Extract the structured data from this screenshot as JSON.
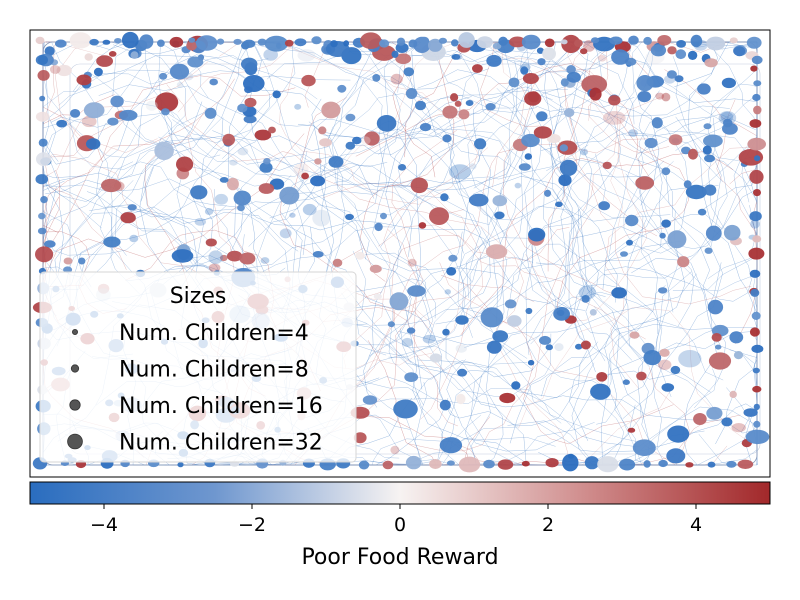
{
  "chart_data": {
    "type": "scatter",
    "title": "",
    "xlabel": "",
    "ylabel": "",
    "axes_ticks_visible": false,
    "grid": false,
    "background_traces": "dense thin random-walk lines colored by reward",
    "scatter_color_mapping": "Poor Food Reward",
    "legend": {
      "title": "Sizes",
      "placement": "lower-left",
      "entries": [
        {
          "label": "Num. Children=4",
          "value": 4
        },
        {
          "label": "Num. Children=8",
          "value": 8
        },
        {
          "label": "Num. Children=16",
          "value": 16
        },
        {
          "label": "Num. Children=32",
          "value": 32
        }
      ]
    },
    "colorbar": {
      "label": "Poor Food Reward",
      "range": [
        -5,
        5
      ],
      "ticks": [
        -4,
        -2,
        0,
        2,
        4
      ],
      "tick_labels": [
        "−4",
        "−2",
        "0",
        "2",
        "4"
      ],
      "colormap": [
        "#2166ac",
        "#f7f7f7",
        "#a2282a"
      ]
    }
  },
  "colors": {
    "negative": "#2a6dbf",
    "neutral": "#f5f0ef",
    "positive": "#a82f33",
    "legend_marker": "#555555"
  }
}
